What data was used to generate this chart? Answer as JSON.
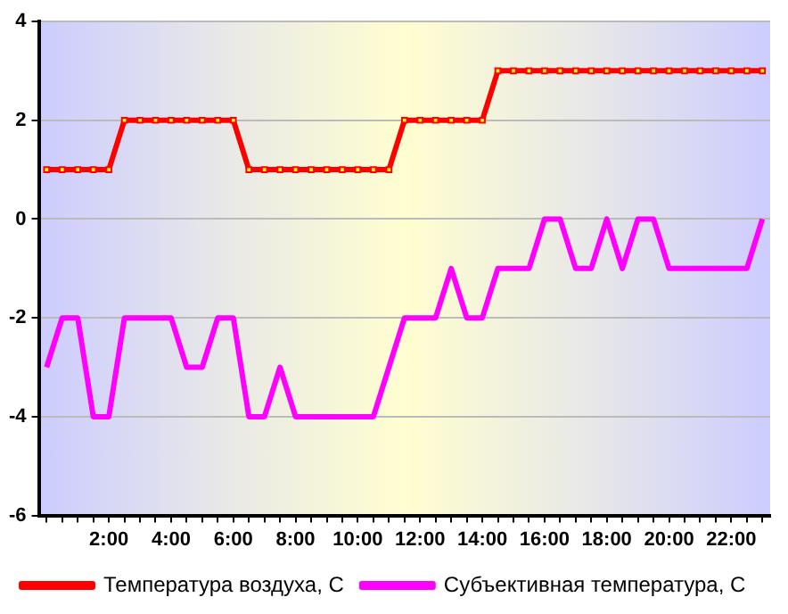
{
  "chart_data": {
    "type": "line",
    "categories": [
      null,
      null,
      null,
      null,
      "2:00",
      null,
      null,
      null,
      "4:00",
      null,
      null,
      null,
      "6:00",
      null,
      null,
      null,
      "8:00",
      null,
      null,
      null,
      "10:00",
      null,
      null,
      null,
      "12:00",
      null,
      null,
      null,
      "14:00",
      null,
      null,
      null,
      "16:00",
      null,
      null,
      null,
      "18:00",
      null,
      null,
      null,
      "20:00",
      null,
      null,
      null,
      "22:00",
      null,
      null
    ],
    "series": [
      {
        "name": "Температура воздуха, С",
        "color": "#ff0000",
        "marker": "square",
        "values": [
          1,
          1,
          1,
          1,
          1,
          2,
          2,
          2,
          2,
          2,
          2,
          2,
          2,
          1,
          1,
          1,
          1,
          1,
          1,
          1,
          1,
          1,
          1,
          2,
          2,
          2,
          2,
          2,
          2,
          3,
          3,
          3,
          3,
          3,
          3,
          3,
          3,
          3,
          3,
          3,
          3,
          3,
          3,
          3,
          3,
          3,
          3
        ]
      },
      {
        "name": "Субъективная температура, С",
        "color": "#ff00ff",
        "marker": "none",
        "values": [
          -3,
          -2,
          -2,
          -4,
          -4,
          -2,
          -2,
          -2,
          -2,
          -3,
          -3,
          -2,
          -2,
          -4,
          -4,
          -3,
          -4,
          -4,
          -4,
          -4,
          -4,
          -4,
          -3,
          -2,
          -2,
          -2,
          -1,
          -2,
          -2,
          -1,
          -1,
          -1,
          0,
          0,
          -1,
          -1,
          0,
          -1,
          0,
          0,
          -1,
          -1,
          -1,
          -1,
          -1,
          -1,
          0
        ]
      }
    ],
    "ylim": [
      -6,
      4
    ],
    "yticks": [
      -6,
      -4,
      -2,
      0,
      2,
      4
    ],
    "grid": "y",
    "legend": "bottom",
    "line_style": "solid"
  }
}
